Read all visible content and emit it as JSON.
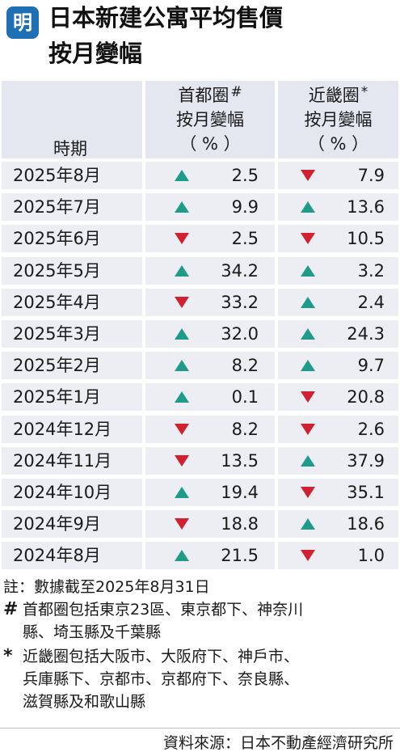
{
  "logo_text": "明",
  "title_line1": "日本新建公寓平均售價",
  "title_line2": "按月變幅",
  "table": {
    "period_header": "時期",
    "col1_header": [
      "首都圈",
      "按月變幅",
      "（ % ）"
    ],
    "col1_mark": "#",
    "col2_header": [
      "近畿圈",
      "按月變幅",
      "（ % ）"
    ],
    "col2_mark": "*",
    "rows": [
      {
        "period": "2025年8月",
        "shutoken_dir": "up",
        "shutoken": "2.5",
        "kinki_dir": "down",
        "kinki": "7.9"
      },
      {
        "period": "2025年7月",
        "shutoken_dir": "up",
        "shutoken": "9.9",
        "kinki_dir": "up",
        "kinki": "13.6"
      },
      {
        "period": "2025年6月",
        "shutoken_dir": "down",
        "shutoken": "2.5",
        "kinki_dir": "down",
        "kinki": "10.5"
      },
      {
        "period": "2025年5月",
        "shutoken_dir": "up",
        "shutoken": "34.2",
        "kinki_dir": "up",
        "kinki": "3.2"
      },
      {
        "period": "2025年4月",
        "shutoken_dir": "down",
        "shutoken": "33.2",
        "kinki_dir": "up",
        "kinki": "2.4"
      },
      {
        "period": "2025年3月",
        "shutoken_dir": "up",
        "shutoken": "32.0",
        "kinki_dir": "up",
        "kinki": "24.3"
      },
      {
        "period": "2025年2月",
        "shutoken_dir": "up",
        "shutoken": "8.2",
        "kinki_dir": "up",
        "kinki": "9.7"
      },
      {
        "period": "2025年1月",
        "shutoken_dir": "up",
        "shutoken": "0.1",
        "kinki_dir": "down",
        "kinki": "20.8"
      },
      {
        "period": "2024年12月",
        "shutoken_dir": "down",
        "shutoken": "8.2",
        "kinki_dir": "down",
        "kinki": "2.6"
      },
      {
        "period": "2024年11月",
        "shutoken_dir": "down",
        "shutoken": "13.5",
        "kinki_dir": "up",
        "kinki": "37.9"
      },
      {
        "period": "2024年10月",
        "shutoken_dir": "up",
        "shutoken": "19.4",
        "kinki_dir": "down",
        "kinki": "35.1"
      },
      {
        "period": "2024年9月",
        "shutoken_dir": "down",
        "shutoken": "18.8",
        "kinki_dir": "up",
        "kinki": "18.6"
      },
      {
        "period": "2024年8月",
        "shutoken_dir": "up",
        "shutoken": "21.5",
        "kinki_dir": "down",
        "kinki": "1.0"
      }
    ]
  },
  "notes": {
    "data_cutoff": "註：數據截至2025年8月31日",
    "hash_mark": "#",
    "hash_lines": [
      "首都圈包括東京23區、東京都下、神奈川",
      "縣、埼玉縣及千葉縣"
    ],
    "star_mark": "*",
    "star_lines": [
      "近畿圈包括大阪市、大阪府下、神戶市、",
      "兵庫縣下、京都市、京都府下、奈良縣、",
      "滋賀縣及和歌山縣"
    ]
  },
  "source": "資料來源：日本不動產經濟研究所",
  "colors": {
    "up": "#1f9b8a",
    "down": "#d1202f",
    "header_bg": "#e4e7ef",
    "row_bg": "#eceef3",
    "logo_bg": "#1f6fb5"
  }
}
